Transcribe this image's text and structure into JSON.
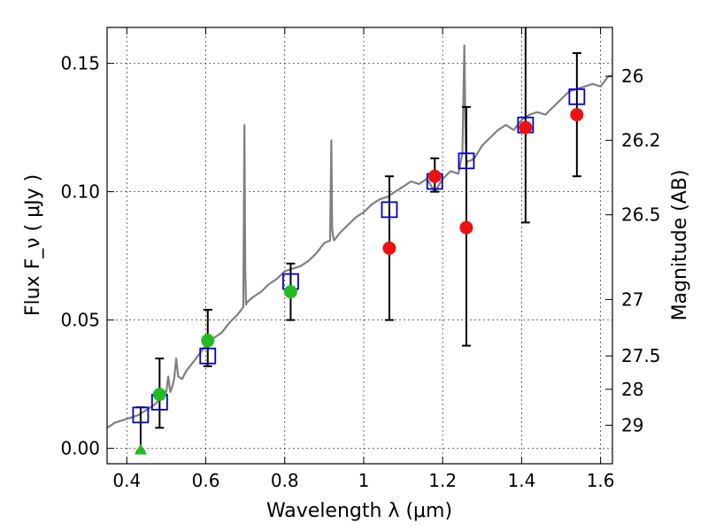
{
  "chart_data": {
    "type": "scatter",
    "xlabel": "Wavelength λ (μm)",
    "ylabel": "Flux F_ν ( μJy )",
    "y2label": "Magnitude (AB)",
    "xlim": [
      0.35,
      1.63
    ],
    "ylim": [
      -0.006,
      0.164
    ],
    "grid": true,
    "x_ticks": [
      0.4,
      0.6,
      0.8,
      1.0,
      1.2,
      1.4,
      1.6
    ],
    "x_tick_labels": [
      "0.4",
      "0.6",
      "0.8",
      "1",
      "1.2",
      "1.4",
      "1.6"
    ],
    "y_ticks": [
      0.0,
      0.05,
      0.1,
      0.15
    ],
    "y_tick_labels": [
      "0.00",
      "0.05",
      "0.10",
      "0.15"
    ],
    "mag_ticks": [
      {
        "label": "26",
        "flux": 0.145
      },
      {
        "label": "26.2",
        "flux": 0.12
      },
      {
        "label": "26.5",
        "flux": 0.091
      },
      {
        "label": "27",
        "flux": 0.058
      },
      {
        "label": "27.5",
        "flux": 0.036
      },
      {
        "label": "28",
        "flux": 0.023
      },
      {
        "label": "29",
        "flux": 0.009
      }
    ],
    "colors": {
      "spectrum": "#808080",
      "green": "#22bb22",
      "red": "#ee1111",
      "model_box": "#0000cc",
      "errorbar": "#000000"
    },
    "series": [
      {
        "name": "spectrum",
        "style": "line",
        "x": [
          0.35,
          0.37,
          0.39,
          0.41,
          0.43,
          0.45,
          0.47,
          0.49,
          0.5,
          0.505,
          0.51,
          0.515,
          0.52,
          0.525,
          0.53,
          0.54,
          0.55,
          0.56,
          0.58,
          0.6,
          0.62,
          0.64,
          0.66,
          0.68,
          0.695,
          0.698,
          0.7,
          0.702,
          0.705,
          0.72,
          0.74,
          0.76,
          0.78,
          0.8,
          0.82,
          0.84,
          0.86,
          0.88,
          0.9,
          0.915,
          0.918,
          0.92,
          0.922,
          0.925,
          0.94,
          0.96,
          0.98,
          1.0,
          1.02,
          1.04,
          1.06,
          1.08,
          1.1,
          1.12,
          1.14,
          1.16,
          1.18,
          1.2,
          1.22,
          1.24,
          1.25,
          1.255,
          1.258,
          1.26,
          1.263,
          1.27,
          1.28,
          1.3,
          1.32,
          1.34,
          1.36,
          1.38,
          1.4,
          1.42,
          1.44,
          1.46,
          1.48,
          1.5,
          1.52,
          1.54,
          1.56,
          1.58,
          1.6,
          1.62,
          1.63
        ],
        "y": [
          0.008,
          0.01,
          0.011,
          0.012,
          0.013,
          0.015,
          0.017,
          0.02,
          0.022,
          0.028,
          0.022,
          0.024,
          0.027,
          0.035,
          0.028,
          0.027,
          0.03,
          0.032,
          0.036,
          0.04,
          0.043,
          0.045,
          0.049,
          0.052,
          0.055,
          0.126,
          0.07,
          0.056,
          0.057,
          0.059,
          0.061,
          0.064,
          0.066,
          0.069,
          0.07,
          0.071,
          0.073,
          0.076,
          0.08,
          0.081,
          0.12,
          0.086,
          0.083,
          0.081,
          0.084,
          0.087,
          0.09,
          0.092,
          0.095,
          0.097,
          0.098,
          0.1,
          0.102,
          0.104,
          0.103,
          0.105,
          0.1,
          0.105,
          0.108,
          0.107,
          0.115,
          0.157,
          0.12,
          0.11,
          0.112,
          0.112,
          0.113,
          0.118,
          0.121,
          0.124,
          0.126,
          0.124,
          0.128,
          0.13,
          0.131,
          0.13,
          0.133,
          0.136,
          0.139,
          0.14,
          0.141,
          0.142,
          0.141,
          0.145,
          0.145
        ]
      },
      {
        "name": "model_photometry",
        "style": "open-square",
        "x": [
          0.435,
          0.483,
          0.605,
          0.815,
          1.065,
          1.18,
          1.26,
          1.41,
          1.54
        ],
        "y": [
          0.013,
          0.018,
          0.036,
          0.065,
          0.093,
          0.104,
          0.112,
          0.126,
          0.137
        ]
      },
      {
        "name": "observed_green",
        "style": "circle",
        "x": [
          0.483,
          0.605,
          0.815
        ],
        "y": [
          0.021,
          0.042,
          0.061
        ],
        "err_low": [
          0.008,
          0.032,
          0.05
        ],
        "err_high": [
          0.035,
          0.054,
          0.072
        ]
      },
      {
        "name": "observed_red",
        "style": "circle",
        "x": [
          1.065,
          1.18,
          1.26,
          1.41,
          1.54
        ],
        "y": [
          0.078,
          0.106,
          0.086,
          0.125,
          0.13
        ],
        "err_low": [
          0.05,
          0.1,
          0.04,
          0.088,
          0.106
        ],
        "err_high": [
          0.106,
          0.113,
          0.133,
          0.166,
          0.154
        ]
      },
      {
        "name": "upper_limit",
        "style": "triangle",
        "x": [
          0.435
        ],
        "y": [
          -0.001
        ],
        "err_low": [
          -0.001
        ],
        "err_high": [
          0.016
        ]
      }
    ]
  }
}
